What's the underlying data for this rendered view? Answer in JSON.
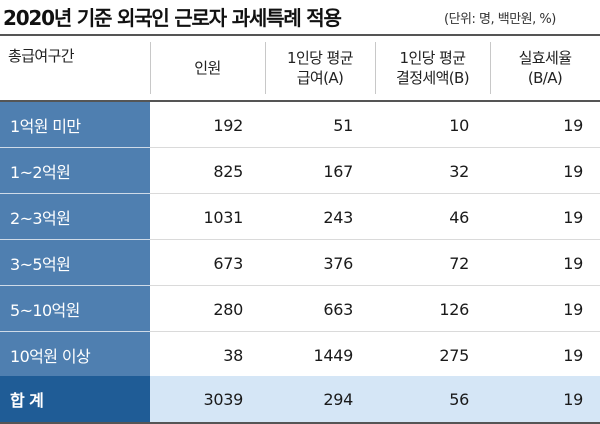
{
  "title": "2020년 기준 외국인 근로자 과세특례 적용",
  "unit": "(단위: 명, 백만원, %)",
  "columns": [
    "총급여구간",
    "인원",
    "1인당 평균\n급여(A)",
    "1인당 평균\n결정세액(B)",
    "실효세율\n(B/A)"
  ],
  "chart_data": {
    "type": "table",
    "title": "2020년 기준 외국인 근로자 과세특례 적용",
    "unit": "(단위: 명, 백만원, %)",
    "columns": [
      "총급여구간",
      "인원",
      "1인당 평균 급여(A)",
      "1인당 평균 결정세액(B)",
      "실효세율 (B/A)"
    ],
    "rows": [
      {
        "label": "1억원 미만",
        "values": [
          "192",
          "51",
          "10",
          "19"
        ]
      },
      {
        "label": "1~2억원",
        "values": [
          "825",
          "167",
          "32",
          "19"
        ]
      },
      {
        "label": "2~3억원",
        "values": [
          "1031",
          "243",
          "46",
          "19"
        ]
      },
      {
        "label": "3~5억원",
        "values": [
          "673",
          "376",
          "72",
          "19"
        ]
      },
      {
        "label": "5~10억원",
        "values": [
          "280",
          "663",
          "126",
          "19"
        ]
      },
      {
        "label": "10억원 이상",
        "values": [
          "38",
          "1449",
          "275",
          "19"
        ]
      },
      {
        "label": "합 계",
        "values": [
          "3039",
          "294",
          "56",
          "19"
        ],
        "total": true
      }
    ]
  },
  "colors": {
    "label_fill": "#4f7fb0",
    "total_label_fill": "#1f5c96",
    "total_row_fill": "#d5e6f6"
  }
}
